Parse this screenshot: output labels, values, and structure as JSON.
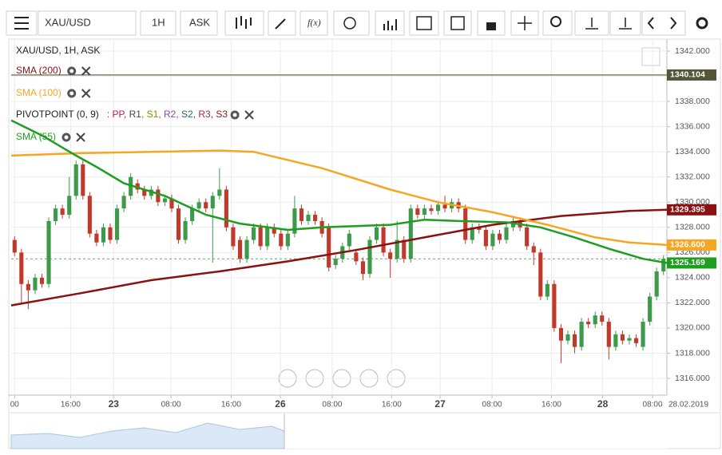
{
  "toolbar": {
    "symbol": "XAU/USD",
    "interval": "1H",
    "price_type": "ASK",
    "function": "f(x)"
  },
  "chart_data": {
    "type": "candlestick",
    "title": "XAU/USD, 1H, ASK",
    "xlim": [
      -0.5,
      95.5
    ],
    "xticks": [
      {
        "value": 0,
        "label": "00"
      },
      {
        "value": 8.2,
        "label": "16:00"
      },
      {
        "value": 14.5,
        "label": "23"
      },
      {
        "value": 22.9,
        "label": "08:00"
      },
      {
        "value": 31.7,
        "label": "16:00"
      },
      {
        "value": 38.9,
        "label": "26"
      },
      {
        "value": 46.5,
        "label": "08:00"
      },
      {
        "value": 55.2,
        "label": "16:00"
      },
      {
        "value": 62.3,
        "label": "27"
      },
      {
        "value": 69.9,
        "label": "08:00"
      },
      {
        "value": 78.6,
        "label": "16:00"
      },
      {
        "value": 86.1,
        "label": "28"
      },
      {
        "value": 93.4,
        "label": "08:00"
      }
    ],
    "date_label": "28.02.2019",
    "ylim": [
      1314.67,
      1342.89
    ],
    "yticks": [
      {
        "value": 1316,
        "label": "1316.000"
      },
      {
        "value": 1318,
        "label": "1318.000"
      },
      {
        "value": 1320,
        "label": "1320.000"
      },
      {
        "value": 1322,
        "label": "1322.000"
      },
      {
        "value": 1324,
        "label": "1324.000"
      },
      {
        "value": 1326,
        "label": "1326.000"
      },
      {
        "value": 1328,
        "label": "1328.000"
      },
      {
        "value": 1330,
        "label": "1330.000"
      },
      {
        "value": 1332,
        "label": "1332.000"
      },
      {
        "value": 1334,
        "label": "1334.000"
      },
      {
        "value": 1336,
        "label": "1336.000"
      },
      {
        "value": 1338,
        "label": "1338.000"
      },
      {
        "value": 1340,
        "label": "1340.000"
      },
      {
        "value": 1342,
        "label": "1342.000"
      }
    ],
    "grid": true,
    "up_color": "#3d9a4b",
    "down_color": "#c0392b",
    "open": [
      1327,
      1326,
      1323.5,
      1323,
      1324,
      1323.5,
      1328.5,
      1329.5,
      1329,
      1330.5,
      1333,
      1330.5,
      1327.5,
      1326.8,
      1328,
      1327,
      1329.5,
      1330.5,
      1331.5,
      1331,
      1330.5,
      1331,
      1330,
      1330.3,
      1329.5,
      1327,
      1328.5,
      1329.5,
      1330,
      1329.5,
      1330.5,
      1331,
      1328,
      1327,
      1325.5,
      1327,
      1328,
      1326.5,
      1328,
      1327.5,
      1326.5,
      1327.5,
      1329.5,
      1328.5,
      1329,
      1328.5,
      1328,
      1325,
      1325.5,
      1326.5,
      1326,
      1325.3,
      1324.3,
      1327,
      1328,
      1326,
      1325.5,
      1327,
      1325.5,
      1329.5,
      1329,
      1329.5,
      1329.3,
      1329.8,
      1329.5,
      1330,
      1329.5,
      1327,
      1328,
      1327.8,
      1326.5,
      1327.5,
      1327,
      1328,
      1328.5,
      1328,
      1326.5,
      1326,
      1322.5,
      1323.5,
      1320,
      1319,
      1319.5,
      1318.5,
      1320.5,
      1320.3,
      1321,
      1320.5,
      1318.5,
      1319.5,
      1319,
      1319.2,
      1318.5,
      1320.5,
      1322.5,
      1324.5
    ],
    "high": [
      1327.3,
      1326.3,
      1323.8,
      1324.3,
      1324.3,
      1328.8,
      1329.8,
      1329.8,
      1332,
      1333.3,
      1333.3,
      1330.8,
      1327.8,
      1328.3,
      1328.3,
      1329.8,
      1330.8,
      1332.3,
      1331.8,
      1331.3,
      1331.3,
      1331.3,
      1330.6,
      1330.6,
      1329.8,
      1328.8,
      1329.8,
      1330.3,
      1330.3,
      1330.8,
      1332.7,
      1331.3,
      1328.3,
      1327.3,
      1327.3,
      1328.3,
      1328.3,
      1328.3,
      1328.3,
      1327.8,
      1327.8,
      1330.5,
      1329.8,
      1329.3,
      1329.3,
      1328.8,
      1328.3,
      1325.8,
      1326.8,
      1327.8,
      1326.3,
      1325.6,
      1327.3,
      1328.3,
      1328.3,
      1326.3,
      1328.5,
      1327.3,
      1329.8,
      1329.8,
      1329.8,
      1329.8,
      1330.1,
      1330.5,
      1330.3,
      1330.3,
      1329.8,
      1328.3,
      1328.3,
      1328.1,
      1327.8,
      1327.8,
      1328.3,
      1328.8,
      1328.8,
      1328.3,
      1326.8,
      1326.3,
      1323.8,
      1323.8,
      1320.3,
      1319.8,
      1319.8,
      1320.8,
      1320.8,
      1321.3,
      1321.3,
      1320.8,
      1319.8,
      1319.8,
      1319.5,
      1319.5,
      1320.8,
      1322.8,
      1324.8,
      1325.8
    ],
    "low": [
      1325.7,
      1322,
      1321.5,
      1322.7,
      1323.2,
      1323.2,
      1328.2,
      1328.7,
      1328.7,
      1330.2,
      1330.2,
      1327.2,
      1326.5,
      1326.5,
      1326.7,
      1326.7,
      1329.2,
      1330.2,
      1330.7,
      1330.2,
      1330.2,
      1329.7,
      1329.7,
      1329.2,
      1326.7,
      1326.7,
      1328.2,
      1329.2,
      1329.2,
      1325.2,
      1330.2,
      1327.7,
      1326.2,
      1325.2,
      1325.2,
      1326.7,
      1326.2,
      1326.2,
      1327.2,
      1326.2,
      1326.2,
      1327.2,
      1328.2,
      1328.2,
      1328.2,
      1327.2,
      1324.5,
      1324.7,
      1325.2,
      1326.2,
      1325,
      1323.8,
      1324,
      1326.7,
      1325.7,
      1324,
      1325.2,
      1325.2,
      1325.2,
      1328.7,
      1328.7,
      1329,
      1329,
      1329.2,
      1329.2,
      1329.2,
      1326.7,
      1326.7,
      1327.5,
      1326.2,
      1326.2,
      1326.7,
      1326.7,
      1327.7,
      1327.7,
      1326.2,
      1325,
      1322.2,
      1322.2,
      1319.7,
      1317.2,
      1318.7,
      1318,
      1318.2,
      1320,
      1320,
      1320.2,
      1317.5,
      1318.2,
      1318.7,
      1318.7,
      1318.5,
      1318.2,
      1320.2,
      1322.2,
      1324.2
    ],
    "close": [
      1326,
      1323.5,
      1323,
      1324,
      1323.5,
      1328.5,
      1329.5,
      1329,
      1330.5,
      1333,
      1330.5,
      1327.5,
      1326.8,
      1328,
      1327,
      1329.5,
      1330.5,
      1332,
      1331,
      1330.5,
      1331,
      1330,
      1330.3,
      1329.5,
      1327,
      1328.5,
      1329.5,
      1330,
      1329.5,
      1330.5,
      1331,
      1328,
      1326.5,
      1325.5,
      1327,
      1328,
      1326.5,
      1328,
      1327.5,
      1326.5,
      1327.5,
      1329.5,
      1328.5,
      1329,
      1328.5,
      1327.5,
      1324.8,
      1325.5,
      1326.5,
      1327.5,
      1325.3,
      1324.3,
      1327,
      1328,
      1326,
      1325.5,
      1327,
      1325.5,
      1329.5,
      1329,
      1329.5,
      1329.3,
      1329.8,
      1329.5,
      1330,
      1329.5,
      1327,
      1328,
      1327.8,
      1326.5,
      1327.5,
      1327,
      1328,
      1328.5,
      1328,
      1326.5,
      1326,
      1322.5,
      1323.5,
      1320,
      1319,
      1319.5,
      1318.5,
      1320.5,
      1320.3,
      1321,
      1320.5,
      1318.5,
      1319.5,
      1319,
      1319.2,
      1318.8,
      1320.5,
      1322.5,
      1324.5,
      1325.5
    ],
    "last_price": 1325.5,
    "series": [
      {
        "name": "SMA (200)",
        "color": "#8b1010",
        "x": [
          -0.5,
          10,
          20,
          30,
          40,
          50,
          60,
          70,
          80,
          90,
          95.5
        ],
        "values": [
          1321.8,
          1322.8,
          1323.8,
          1324.5,
          1325.3,
          1326.2,
          1327.2,
          1328.2,
          1328.9,
          1329.3,
          1329.395
        ],
        "value_label": {
          "value": 1329.395,
          "label": "1329.395"
        }
      },
      {
        "name": "SMA (100)",
        "color": "#f5a623",
        "x": [
          -0.5,
          10,
          20,
          30,
          35,
          45,
          55,
          62,
          70,
          78,
          85,
          90,
          95.5
        ],
        "values": [
          1333.7,
          1333.9,
          1334,
          1334.1,
          1334,
          1332.7,
          1331,
          1330,
          1329.2,
          1328.2,
          1327.2,
          1326.8,
          1326.6
        ],
        "value_label": {
          "value": 1326.6,
          "label": "1326.600"
        }
      },
      {
        "name": "SMA (55)",
        "color": "#1e9e1e",
        "x": [
          -0.5,
          4,
          9,
          12,
          16,
          22,
          28,
          33,
          40,
          45,
          55,
          60,
          65,
          72,
          77,
          82,
          87,
          92,
          95.5
        ],
        "values": [
          1336.5,
          1335.3,
          1333.7,
          1332.8,
          1331.5,
          1330.5,
          1329,
          1328.3,
          1327.8,
          1328,
          1328.2,
          1328.6,
          1328.5,
          1328.4,
          1328,
          1327.2,
          1326.3,
          1325.5,
          1325.169
        ],
        "value_label": {
          "value": 1325.169,
          "label": "1325.169"
        }
      }
    ],
    "pivot_point": {
      "name": "PIVOTPOINT (0, 9)",
      "level": 1340.104,
      "color": "#55553a",
      "items": [
        {
          "text": ": PP",
          "color": "#c2185b"
        },
        {
          "text": ", R1",
          "color": "#444444"
        },
        {
          "text": ", S1",
          "color": "#8a8a00"
        },
        {
          "text": ", R2",
          "color": "#8e44ad"
        },
        {
          "text": ", S2",
          "color": "#1e6b6b"
        },
        {
          "text": ", R3",
          "color": "#a0303b"
        },
        {
          "text": ", S3",
          "color": "#8b1a1a"
        }
      ]
    }
  }
}
